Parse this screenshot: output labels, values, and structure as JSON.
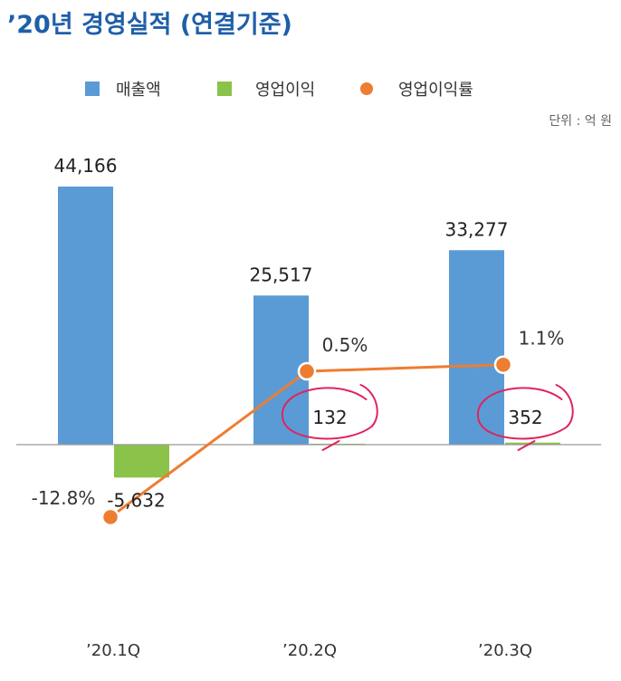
{
  "chart_data": {
    "type": "bar",
    "title": "’20년 경영실적 (연결기준)",
    "unit_label": "단위 : 억 원",
    "categories": [
      "’20.1Q",
      "’20.2Q",
      "’20.3Q"
    ],
    "series": [
      {
        "name": "매출액",
        "type": "bar",
        "color": "#5b9bd5",
        "values": [
          44166,
          25517,
          33277
        ],
        "labels": [
          "44,166",
          "25,517",
          "33,277"
        ]
      },
      {
        "name": "영업이익",
        "type": "bar",
        "color": "#8bc34a",
        "values": [
          -5632,
          132,
          352
        ],
        "labels": [
          "-5,632",
          "132",
          "352"
        ]
      },
      {
        "name": "영업이익률",
        "type": "line",
        "color": "#ed7d31",
        "values": [
          -12.8,
          0.5,
          1.1
        ],
        "labels": [
          "-12.8%",
          "0.5%",
          "1.1%"
        ]
      }
    ],
    "highlight": {
      "circled_categories": [
        "’20.2Q",
        "’20.3Q"
      ],
      "color": "#e0245e"
    },
    "legend_position": "top",
    "grid": false
  }
}
